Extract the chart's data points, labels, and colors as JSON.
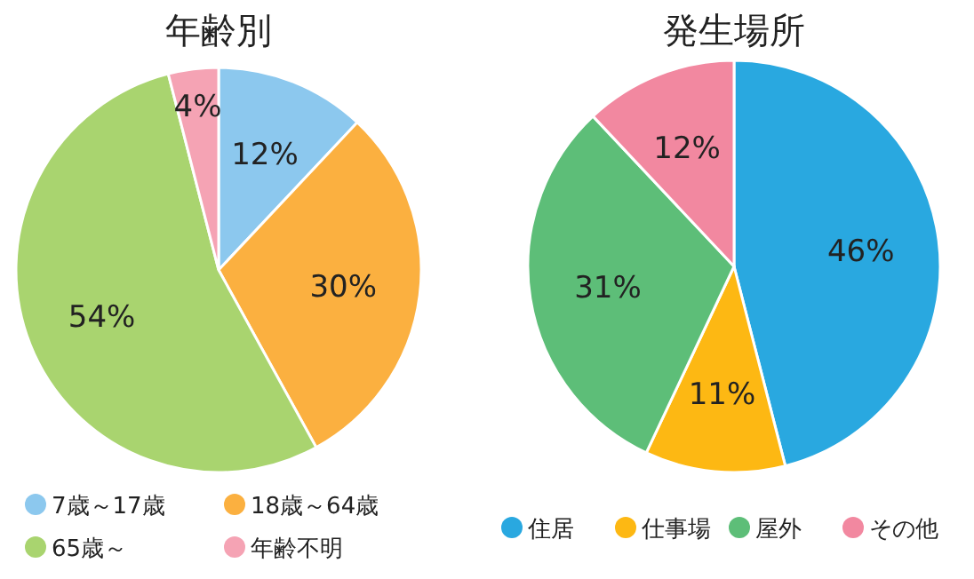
{
  "chart_data": [
    {
      "type": "pie",
      "title": "年齢別",
      "categories": [
        "7歳～17歳",
        "18歳～64歳",
        "65歳～",
        "年齢不明"
      ],
      "values": [
        12,
        30,
        54,
        4
      ],
      "colors": [
        "#8cc8ee",
        "#fbb040",
        "#a9d46f",
        "#f5a3b4"
      ],
      "value_labels": [
        "12%",
        "30%",
        "54%",
        "4%"
      ],
      "legend": "bottom"
    },
    {
      "type": "pie",
      "title": "発生場所",
      "categories": [
        "住居",
        "仕事場",
        "屋外",
        "その他"
      ],
      "values": [
        46,
        11,
        31,
        12
      ],
      "colors": [
        "#29a8e0",
        "#fdb813",
        "#5dbe78",
        "#f288a0"
      ],
      "value_labels": [
        "46%",
        "11%",
        "31%",
        "12%"
      ],
      "legend": "bottom"
    }
  ]
}
